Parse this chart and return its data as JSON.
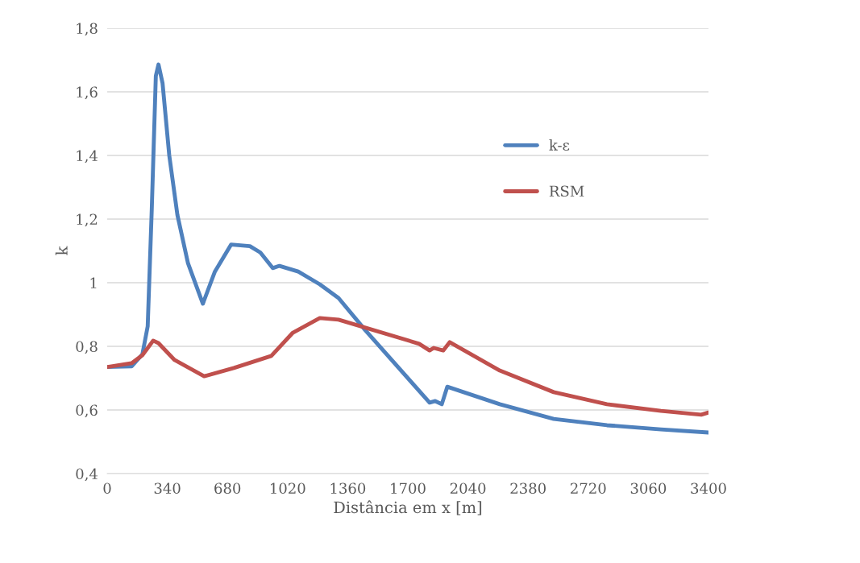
{
  "chart_data": {
    "type": "line",
    "xlabel": "Distância em x [m]",
    "ylabel": "k",
    "xlim": [
      0,
      3400
    ],
    "xticks": [
      0,
      340,
      680,
      1020,
      1360,
      1700,
      2040,
      2380,
      2720,
      3060,
      3400
    ],
    "ylim": [
      0.4,
      1.8
    ],
    "yticks": [
      {
        "value": 0.4,
        "label": "0,4"
      },
      {
        "value": 0.6,
        "label": "0,6"
      },
      {
        "value": 0.8,
        "label": "0,8"
      },
      {
        "value": 1,
        "label": "1"
      },
      {
        "value": 1.2,
        "label": "1,2"
      },
      {
        "value": 1.4,
        "label": "1,4"
      },
      {
        "value": 1.6,
        "label": "1,6"
      },
      {
        "value": 1.8,
        "label": "1,8"
      }
    ],
    "grid": "y",
    "legend": "right",
    "marker": "none",
    "line_style": "solid",
    "series": [
      {
        "name": "k-ε",
        "color": "#4f81bd",
        "x": [
          0,
          138,
          199,
          229,
          252,
          275,
          290,
          313,
          351,
          397,
          457,
          541,
          609,
          701,
          807,
          866,
          936,
          974,
          1080,
          1202,
          1308,
          1459,
          1823,
          1855,
          1892,
          1923,
          2220,
          2525,
          2826,
          3131,
          3400
        ],
        "values": [
          0.735,
          0.737,
          0.775,
          0.863,
          1.23,
          1.65,
          1.686,
          1.627,
          1.4,
          1.213,
          1.061,
          0.934,
          1.035,
          1.12,
          1.115,
          1.095,
          1.046,
          1.053,
          1.035,
          0.995,
          0.952,
          0.851,
          0.623,
          0.628,
          0.618,
          0.673,
          0.618,
          0.572,
          0.552,
          0.539,
          0.529
        ]
      },
      {
        "name": "RSM",
        "color": "#c0504d",
        "x": [
          0,
          138,
          199,
          260,
          290,
          381,
          548,
          716,
          928,
          1050,
          1202,
          1308,
          1764,
          1823,
          1846,
          1900,
          1937,
          2220,
          2525,
          2826,
          3131,
          3359,
          3400
        ],
        "values": [
          0.735,
          0.747,
          0.772,
          0.818,
          0.81,
          0.757,
          0.706,
          0.732,
          0.77,
          0.843,
          0.889,
          0.884,
          0.808,
          0.787,
          0.795,
          0.787,
          0.813,
          0.724,
          0.656,
          0.618,
          0.597,
          0.585,
          0.592
        ]
      }
    ]
  }
}
